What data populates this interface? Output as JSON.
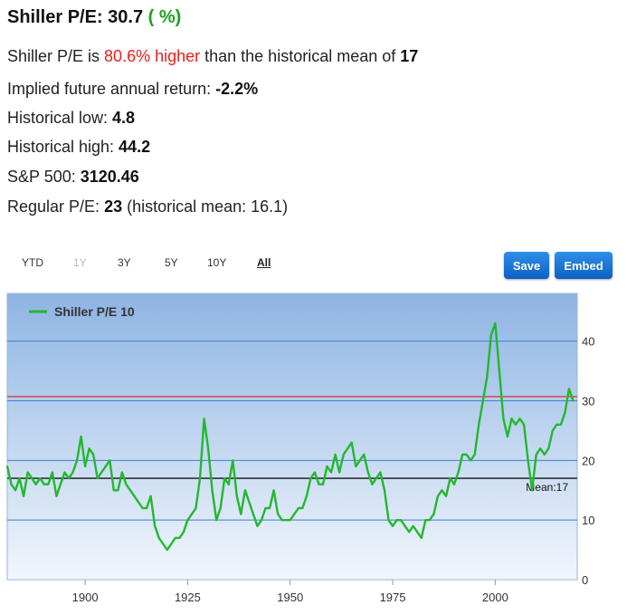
{
  "header": {
    "title_prefix": "Shiller P/E: 30.7",
    "title_open": " (",
    "title_pct": " %",
    "title_close": ")"
  },
  "stats": {
    "l1_a": "Shiller P/E is ",
    "l1_red": "80.6% higher",
    "l1_b": " than the historical mean of ",
    "l1_val": "17",
    "l2_a": "Implied future annual return: ",
    "l2_val": "-2.2%",
    "l3_a": "Historical low: ",
    "l3_val": "4.8",
    "l4_a": "Historical high: ",
    "l4_val": "44.2",
    "l5_a": "S&P 500: ",
    "l5_val": "3120.46",
    "l6_a": "Regular P/E: ",
    "l6_val": "23",
    "l6_b": " (historical mean: 16.1)"
  },
  "zoom": {
    "ytd": "YTD",
    "y1": "1Y",
    "y3": "3Y",
    "y5": "5Y",
    "y10": "10Y",
    "all": "All"
  },
  "buttons": {
    "save": "Save",
    "embed": "Embed"
  },
  "colors": {
    "series": "#22b82e",
    "current_line": "#e03030",
    "mean_line": "#111111",
    "grid": "#3a7fd6",
    "plot_top": "#8eb4e3",
    "plot_bottom": "#f2f6fc",
    "button": "#1a6fd4"
  },
  "chart_data": {
    "type": "line",
    "series": [
      {
        "name": "Shiller P/E 10",
        "x": [
          1881,
          1882,
          1883,
          1884,
          1885,
          1886,
          1887,
          1888,
          1889,
          1890,
          1891,
          1892,
          1893,
          1894,
          1895,
          1896,
          1897,
          1898,
          1899,
          1900,
          1901,
          1902,
          1903,
          1904,
          1905,
          1906,
          1907,
          1908,
          1909,
          1910,
          1911,
          1912,
          1913,
          1914,
          1915,
          1916,
          1917,
          1918,
          1919,
          1920,
          1921,
          1922,
          1923,
          1924,
          1925,
          1926,
          1927,
          1928,
          1929,
          1930,
          1931,
          1932,
          1933,
          1934,
          1935,
          1936,
          1937,
          1938,
          1939,
          1940,
          1941,
          1942,
          1943,
          1944,
          1945,
          1946,
          1947,
          1948,
          1949,
          1950,
          1951,
          1952,
          1953,
          1954,
          1955,
          1956,
          1957,
          1958,
          1959,
          1960,
          1961,
          1962,
          1963,
          1964,
          1965,
          1966,
          1967,
          1968,
          1969,
          1970,
          1971,
          1972,
          1973,
          1974,
          1975,
          1976,
          1977,
          1978,
          1979,
          1980,
          1981,
          1982,
          1983,
          1984,
          1985,
          1986,
          1987,
          1988,
          1989,
          1990,
          1991,
          1992,
          1993,
          1994,
          1995,
          1996,
          1997,
          1998,
          1999,
          2000,
          2001,
          2002,
          2003,
          2004,
          2005,
          2006,
          2007,
          2008,
          2009,
          2010,
          2011,
          2012,
          2013,
          2014,
          2015,
          2016,
          2017,
          2018,
          2019
        ],
        "values": [
          19,
          16,
          15,
          17,
          14,
          18,
          17,
          16,
          17,
          16,
          16,
          18,
          14,
          16,
          18,
          17,
          18,
          20,
          24,
          19,
          22,
          21,
          17,
          18,
          19,
          20,
          15,
          15,
          18,
          16,
          15,
          14,
          13,
          12,
          12,
          14,
          9,
          7,
          6,
          5,
          6,
          7,
          7,
          8,
          10,
          11,
          12,
          17,
          27,
          22,
          15,
          10,
          12,
          17,
          16,
          20,
          14,
          11,
          15,
          13,
          11,
          9,
          10,
          12,
          12,
          15,
          11,
          10,
          10,
          10,
          11,
          12,
          12,
          14,
          17,
          18,
          16,
          16,
          19,
          18,
          21,
          18,
          21,
          22,
          23,
          19,
          20,
          21,
          18,
          16,
          17,
          18,
          15,
          10,
          9,
          10,
          10,
          9,
          8,
          9,
          8,
          7,
          10,
          10,
          11,
          14,
          15,
          14,
          17,
          16,
          18,
          21,
          21,
          20,
          21,
          26,
          30,
          34,
          41,
          43,
          35,
          27,
          24,
          27,
          26,
          27,
          26,
          20,
          15,
          21,
          22,
          21,
          22,
          25,
          26,
          26,
          28,
          32,
          30
        ]
      }
    ],
    "hlines": [
      {
        "label": "",
        "value": 30.7
      },
      {
        "label": "Mean:17",
        "value": 17
      }
    ],
    "xticks": [
      1900,
      1925,
      1950,
      1975,
      2000
    ],
    "yticks": [
      0,
      10,
      20,
      30,
      40
    ],
    "xlim": [
      1881,
      2020
    ],
    "ylim": [
      0,
      48
    ],
    "legend_position": "top-left",
    "grid": true
  }
}
